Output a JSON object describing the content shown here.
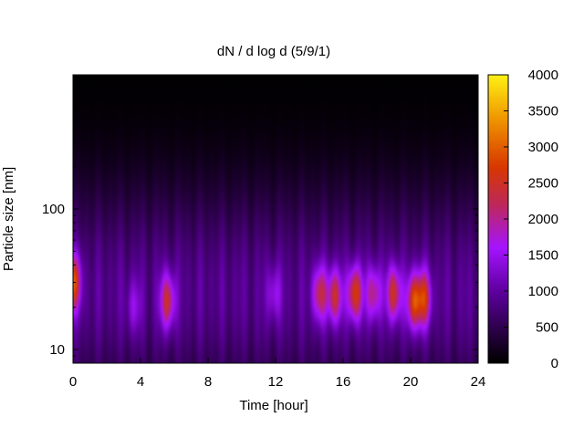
{
  "chart_data": {
    "type": "heatmap",
    "title": "dN / d log d (5/9/1)",
    "xlabel": "Time [hour]",
    "ylabel": "Particle size [nm]",
    "x_ticks": [
      0,
      4,
      8,
      12,
      16,
      20,
      24
    ],
    "x_range": [
      0,
      24
    ],
    "y_scale": "log",
    "y_ticks": [
      10,
      100
    ],
    "y_range": [
      8,
      900
    ],
    "colorbar": {
      "ticks": [
        0,
        500,
        1000,
        1500,
        2000,
        2500,
        3000,
        3500,
        4000
      ],
      "range": [
        0,
        4000
      ],
      "palette": "black-purple-red-orange-yellow",
      "placement": "right"
    },
    "grid": false,
    "mode_diameter_nm": 25,
    "baseline_dN": 1100,
    "events": [
      {
        "time_h": 0.0,
        "peak_dN": 3200,
        "mode_nm": 30
      },
      {
        "time_h": 3.6,
        "peak_dN": 1700,
        "mode_nm": 20
      },
      {
        "time_h": 5.6,
        "peak_dN": 2700,
        "mode_nm": 22
      },
      {
        "time_h": 11.9,
        "peak_dN": 1800,
        "mode_nm": 25
      },
      {
        "time_h": 14.6,
        "peak_dN": 2500,
        "mode_nm": 25
      },
      {
        "time_h": 15.5,
        "peak_dN": 2700,
        "mode_nm": 24
      },
      {
        "time_h": 16.7,
        "peak_dN": 3000,
        "mode_nm": 25
      },
      {
        "time_h": 17.8,
        "peak_dN": 2400,
        "mode_nm": 25
      },
      {
        "time_h": 19.0,
        "peak_dN": 2800,
        "mode_nm": 25
      },
      {
        "time_h": 20.2,
        "peak_dN": 3000,
        "mode_nm": 22
      },
      {
        "time_h": 20.8,
        "peak_dN": 2700,
        "mode_nm": 23
      }
    ]
  }
}
